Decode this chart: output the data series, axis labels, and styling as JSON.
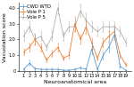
{
  "x": [
    1,
    2,
    3,
    4,
    5,
    6,
    7,
    8,
    9,
    10,
    11,
    12,
    13,
    14,
    15,
    16,
    17,
    18,
    19
  ],
  "cwd_wtd": [
    0.1,
    0.5,
    0.15,
    0.1,
    0.1,
    0.1,
    0.1,
    0.05,
    0.05,
    0.1,
    0.2,
    0.1,
    1.4,
    0.1,
    1.0,
    1.5,
    2.3,
    0.3,
    0.05
  ],
  "cwd_wtd_se": [
    0.05,
    0.15,
    0.07,
    0.04,
    0.04,
    0.04,
    0.05,
    0.03,
    0.03,
    0.05,
    0.1,
    0.05,
    0.35,
    0.05,
    0.25,
    0.3,
    0.35,
    0.12,
    0.03
  ],
  "pass1": [
    1.2,
    1.5,
    2.0,
    1.5,
    0.7,
    1.1,
    1.5,
    0.8,
    1.0,
    3.0,
    2.0,
    2.8,
    1.8,
    0.8,
    1.8,
    2.2,
    2.5,
    1.0,
    0.4
  ],
  "pass1_se": [
    0.2,
    0.25,
    0.35,
    0.25,
    0.15,
    0.2,
    0.25,
    0.15,
    0.2,
    0.45,
    0.3,
    0.45,
    0.3,
    0.15,
    0.3,
    0.35,
    0.35,
    0.2,
    0.1
  ],
  "pass5": [
    2.2,
    2.8,
    2.0,
    2.2,
    1.5,
    2.2,
    4.0,
    2.2,
    2.8,
    2.8,
    3.8,
    3.2,
    2.8,
    2.5,
    2.8,
    2.8,
    2.8,
    2.5,
    1.8
  ],
  "pass5_se": [
    0.3,
    0.35,
    0.3,
    0.3,
    0.2,
    0.3,
    0.4,
    0.3,
    0.35,
    0.35,
    0.4,
    0.45,
    0.35,
    0.3,
    0.35,
    0.35,
    0.35,
    0.3,
    0.25
  ],
  "color_wtd": "#5b9bd5",
  "color_pass1": "#ed7d31",
  "color_pass5": "#b0b0b0",
  "label_wtd": "CWD WTD",
  "label_pass1": "Vole P 1",
  "label_pass5": "Vole P 5",
  "xlabel": "Neuroanatomical area",
  "ylabel": "Vacuolation score",
  "ylim": [
    0,
    4.3
  ],
  "yticks": [
    0,
    1.0,
    2.0,
    3.0,
    4.0
  ],
  "ytick_labels": [
    "0",
    "1.0",
    "2.0",
    "3.0",
    "4.0"
  ],
  "legend_fontsize": 3.8,
  "axis_label_fontsize": 4.5,
  "tick_fontsize": 3.5,
  "linewidth": 0.6,
  "markersize": 0.8,
  "capsize": 0.8,
  "elinewidth": 0.4
}
